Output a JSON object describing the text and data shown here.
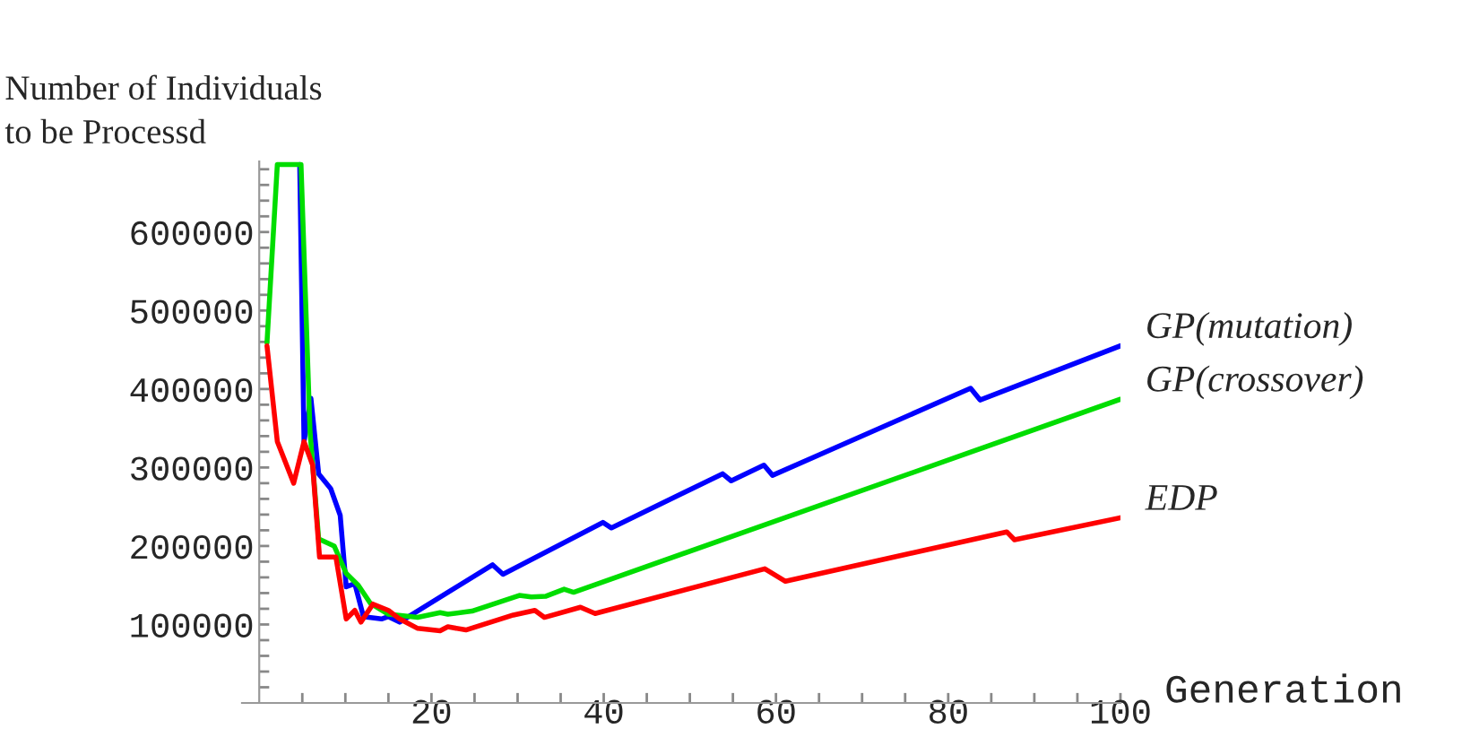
{
  "chart_data": {
    "type": "line",
    "xlabel": "Generation",
    "ylabel": "Number of Individuals\nto be Processd",
    "xlim": [
      -2,
      100
    ],
    "ylim": [
      0,
      690000
    ],
    "xticks": [
      {
        "value": 5,
        "label": null
      },
      {
        "value": 10,
        "label": null
      },
      {
        "value": 15,
        "label": null
      },
      20,
      {
        "value": 25,
        "label": null
      },
      {
        "value": 30,
        "label": null
      },
      {
        "value": 35,
        "label": null
      },
      40,
      {
        "value": 45,
        "label": null
      },
      {
        "value": 50,
        "label": null
      },
      {
        "value": 55,
        "label": null
      },
      60,
      {
        "value": 65,
        "label": null
      },
      {
        "value": 70,
        "label": null
      },
      {
        "value": 75,
        "label": null
      },
      80,
      {
        "value": 85,
        "label": null
      },
      {
        "value": 90,
        "label": null
      },
      {
        "value": 95,
        "label": null
      },
      100
    ],
    "yticks": [
      {
        "value": 20000,
        "label": null
      },
      {
        "value": 40000,
        "label": null
      },
      {
        "value": 60000,
        "label": null
      },
      {
        "value": 80000,
        "label": null
      },
      100000,
      {
        "value": 120000,
        "label": null
      },
      {
        "value": 140000,
        "label": null
      },
      {
        "value": 160000,
        "label": null
      },
      {
        "value": 180000,
        "label": null
      },
      200000,
      {
        "value": 220000,
        "label": null
      },
      {
        "value": 240000,
        "label": null
      },
      {
        "value": 260000,
        "label": null
      },
      {
        "value": 280000,
        "label": null
      },
      300000,
      {
        "value": 320000,
        "label": null
      },
      {
        "value": 340000,
        "label": null
      },
      {
        "value": 360000,
        "label": null
      },
      {
        "value": 380000,
        "label": null
      },
      400000,
      {
        "value": 420000,
        "label": null
      },
      {
        "value": 440000,
        "label": null
      },
      {
        "value": 460000,
        "label": null
      },
      {
        "value": 480000,
        "label": null
      },
      500000,
      {
        "value": 520000,
        "label": null
      },
      {
        "value": 540000,
        "label": null
      },
      {
        "value": 560000,
        "label": null
      },
      {
        "value": 580000,
        "label": null
      },
      600000,
      {
        "value": 620000,
        "label": null
      },
      {
        "value": 640000,
        "label": null
      },
      {
        "value": 660000,
        "label": null
      },
      {
        "value": 680000,
        "label": null
      }
    ],
    "grid": false,
    "line_style": "solid",
    "marker": "none",
    "series": [
      {
        "name": "GP(mutation)",
        "color": "#0000ff",
        "x": [
          4.7,
          5.2,
          6.0,
          6.9,
          8.3,
          9.4,
          10.1,
          11.1,
          12.1,
          14.2,
          15,
          16.3,
          21.9,
          27.1,
          28.3,
          39.9,
          40.9,
          53.8,
          54.8,
          58.6,
          59.6,
          82.6,
          83.7,
          100
        ],
        "values": [
          686000,
          333000,
          388000,
          292000,
          273000,
          239000,
          148000,
          152000,
          110000,
          107000,
          110000,
          103000,
          141000,
          176000,
          164000,
          230000,
          223000,
          292000,
          283000,
          303000,
          290000,
          401000,
          386000,
          455000
        ]
      },
      {
        "name": "GP(crossover)",
        "color": "#00dd00",
        "x": [
          0.9,
          2.1,
          4.85,
          5.9,
          6.9,
          8.7,
          10.1,
          11.5,
          12.9,
          15,
          18.4,
          21,
          21.9,
          24.7,
          30.2,
          31.6,
          33.3,
          35.4,
          36.5,
          100
        ],
        "values": [
          459000,
          686000,
          686000,
          345000,
          209000,
          200000,
          165000,
          150000,
          127000,
          113000,
          109000,
          115000,
          113000,
          117000,
          137000,
          135000,
          136000,
          145000,
          141000,
          387000
        ]
      },
      {
        "name": "EDP",
        "color": "#ff0000",
        "x": [
          0.9,
          2.1,
          4.0,
          5.2,
          6.2,
          7.0,
          8.9,
          10.1,
          11.1,
          11.8,
          13.2,
          15,
          16.3,
          18.4,
          21,
          21.9,
          24,
          29.5,
          32,
          33.1,
          37.3,
          39,
          58.7,
          61.1,
          86.8,
          87.7,
          100
        ],
        "values": [
          455000,
          333000,
          280000,
          333000,
          303000,
          186000,
          186000,
          107000,
          118000,
          103000,
          126000,
          118000,
          107000,
          95000,
          92000,
          97000,
          93000,
          112000,
          118000,
          109000,
          122000,
          114000,
          171000,
          155000,
          218000,
          208000,
          236000
        ]
      }
    ]
  }
}
